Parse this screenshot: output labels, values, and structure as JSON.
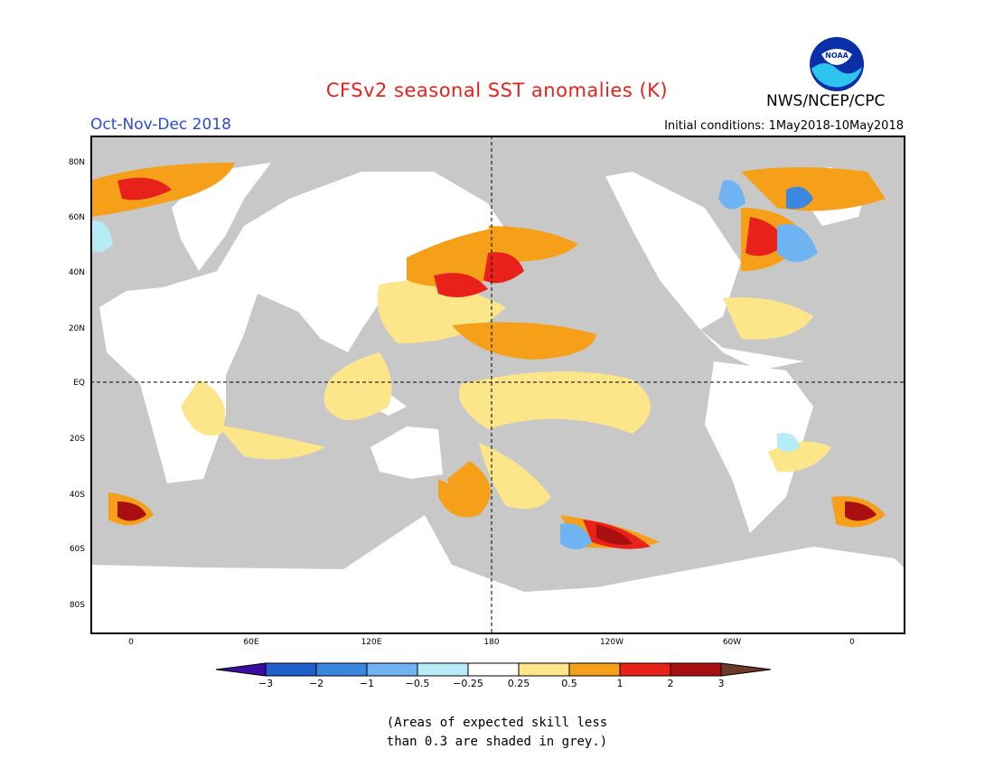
{
  "title": "CFSv2 seasonal SST anomalies (K)",
  "period": "Oct-Nov-Dec 2018",
  "initial_conditions": "Initial conditions: 1May2018-10May2018",
  "agency": "NWS/NCEP/CPC",
  "logo_text": "NOAA",
  "lat_labels": [
    "80N",
    "60N",
    "40N",
    "20N",
    "EQ",
    "20S",
    "40S",
    "60S",
    "80S"
  ],
  "lon_labels": [
    "0",
    "60E",
    "120E",
    "180",
    "120W",
    "60W",
    "0"
  ],
  "colorbar": {
    "labels": [
      "−3",
      "−2",
      "−1",
      "−0.5",
      "−0.25",
      "0.25",
      "0.5",
      "1",
      "2",
      "3"
    ],
    "colors": [
      "#3a0ca3",
      "#1f5fc9",
      "#3a86e0",
      "#6fb3f2",
      "#b6ecf7",
      "#ffffff",
      "#fde58a",
      "#f6a019",
      "#e8221b",
      "#a90f0f",
      "#6b3a2a"
    ]
  },
  "skill_note": {
    "line1": "(Areas of expected skill less",
    "line2": "than 0.3 are shaded in grey.)"
  },
  "colors": {
    "land": "#ffffff",
    "low_skill": "#c8c8c8",
    "title": "#e8221b",
    "period": "#2b4bd6"
  }
}
